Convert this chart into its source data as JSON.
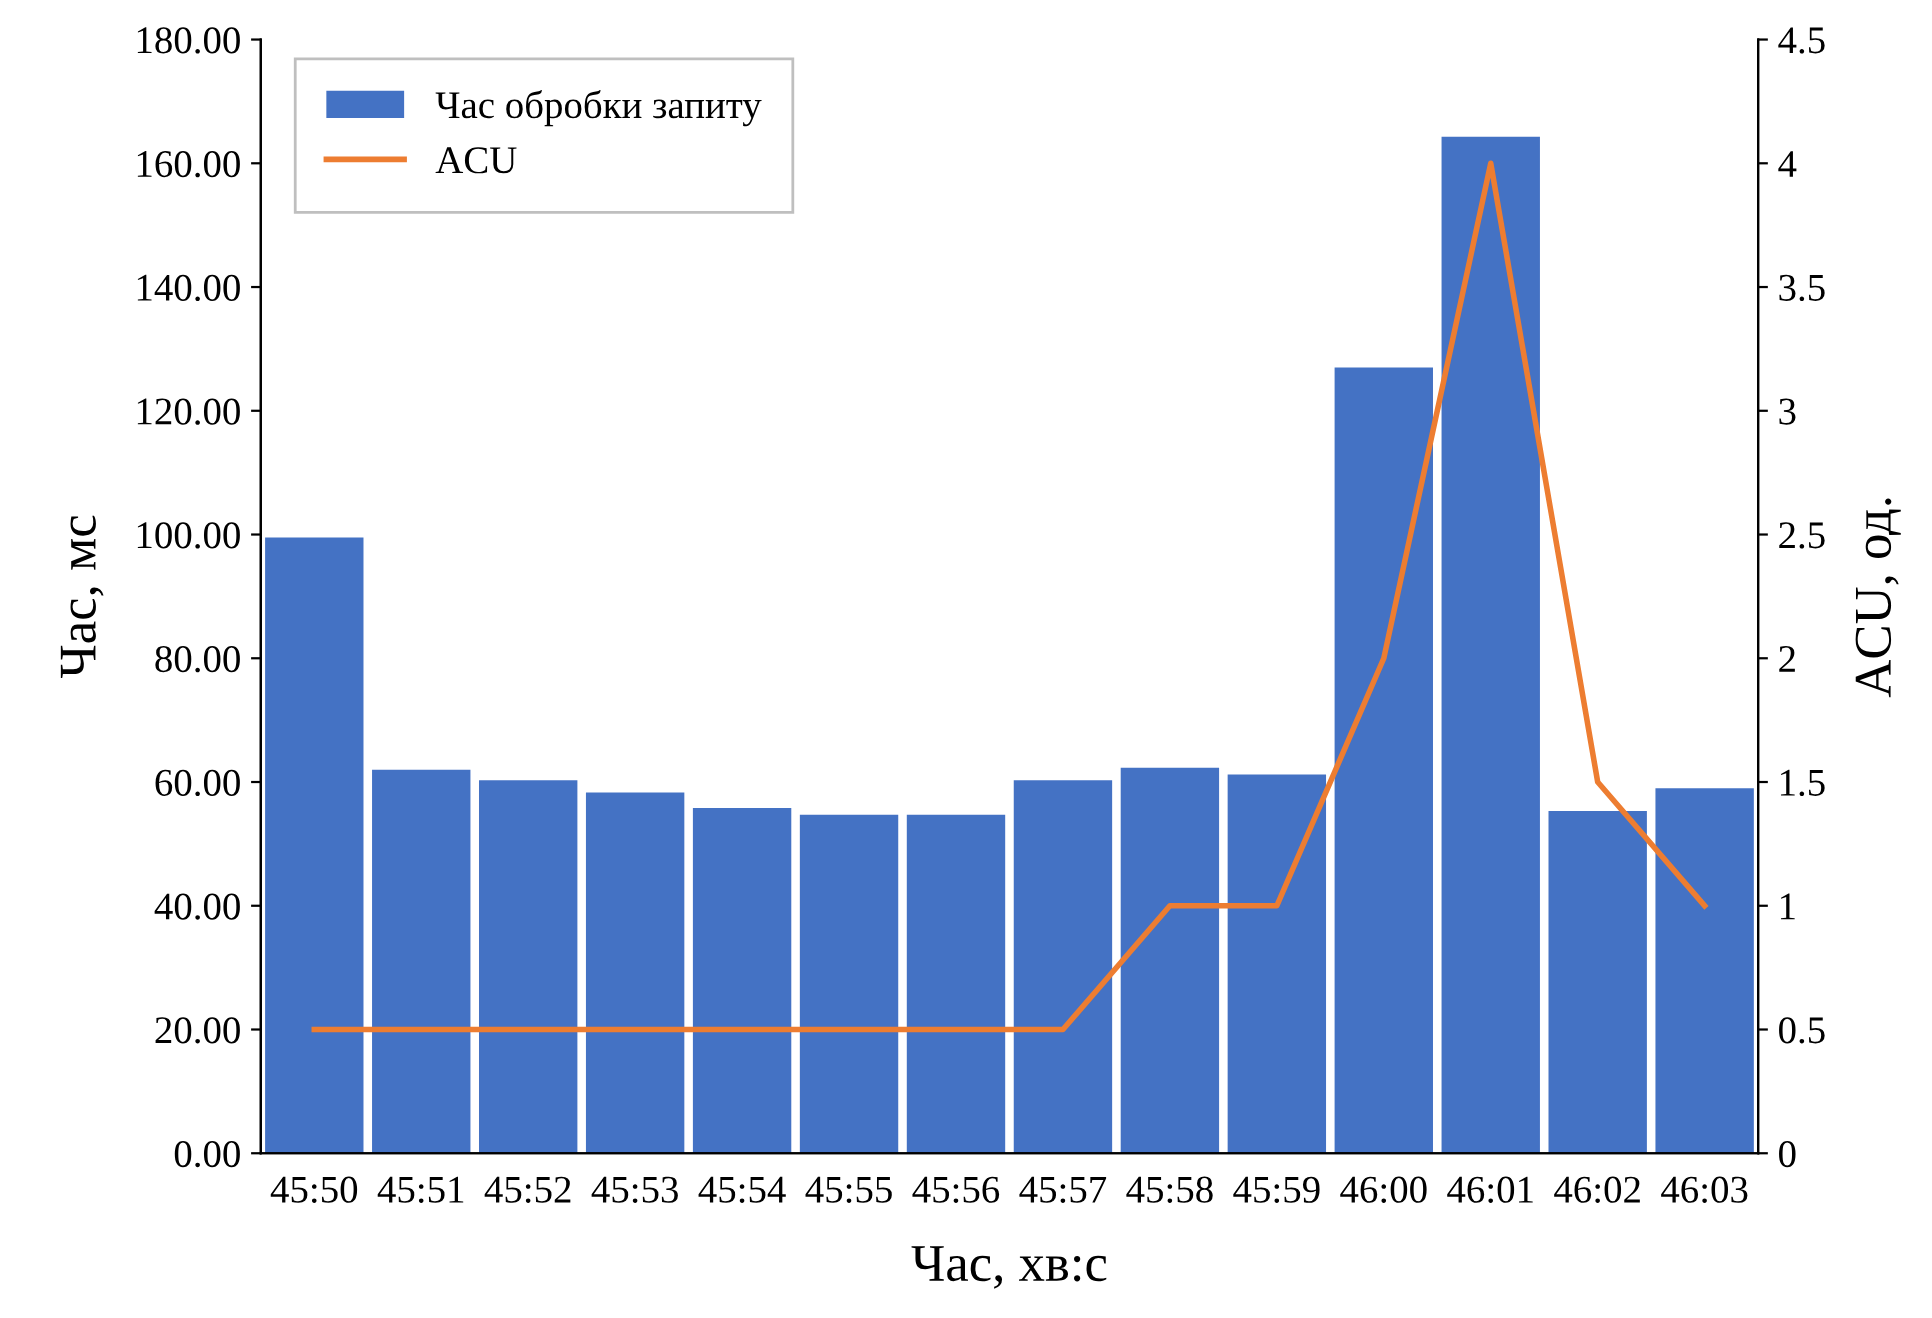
{
  "chart_data": {
    "type": "bar",
    "xlabel": "Час, хв:с",
    "ylabel": "Час, мс",
    "y2label": "ACU, од.",
    "categories": [
      "45:50",
      "45:51",
      "45:52",
      "45:53",
      "45:54",
      "45:55",
      "45:56",
      "45:57",
      "45:58",
      "45:59",
      "46:00",
      "46:01",
      "46:02",
      "46:03"
    ],
    "series": [
      {
        "name": "Час обробки запиту",
        "color": "#4472c4",
        "values": [
          99.5,
          62.0,
          60.3,
          58.3,
          55.8,
          54.7,
          54.7,
          60.3,
          62.3,
          61.2,
          127.0,
          164.3,
          55.3,
          59.0
        ]
      },
      {
        "name": "ACU",
        "type": "line",
        "axis": "y2",
        "color": "#ed7d31",
        "values": [
          0.5,
          0.5,
          0.5,
          0.5,
          0.5,
          0.5,
          0.5,
          0.5,
          1,
          1,
          2,
          4,
          1.5,
          1
        ]
      }
    ],
    "ylim": [
      0,
      180
    ],
    "yticks": [
      {
        "value": 0,
        "label": "0.00"
      },
      {
        "value": 20,
        "label": "20.00"
      },
      {
        "value": 40,
        "label": "40.00"
      },
      {
        "value": 60,
        "label": "60.00"
      },
      {
        "value": 80,
        "label": "80.00"
      },
      {
        "value": 100,
        "label": "100.00"
      },
      {
        "value": 120,
        "label": "120.00"
      },
      {
        "value": 140,
        "label": "140.00"
      },
      {
        "value": 160,
        "label": "160.00"
      },
      {
        "value": 180,
        "label": "180.00"
      }
    ],
    "y2lim": [
      0,
      4.5
    ],
    "y2ticks": [
      0,
      0.5,
      1,
      1.5,
      2,
      2.5,
      3,
      3.5,
      4,
      4.5
    ],
    "grid": false,
    "legend": "top left",
    "marker": "none",
    "line_style": "solid"
  }
}
